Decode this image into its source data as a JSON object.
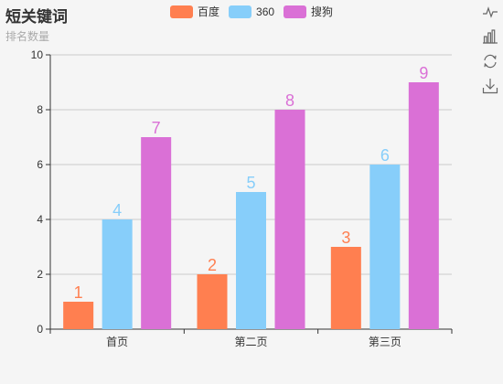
{
  "title": "短关键词",
  "subtitle": "排名数量",
  "toolbox": [
    "line-chart-icon",
    "bar-chart-icon",
    "restore-icon",
    "download-icon"
  ],
  "colors": {
    "baidu": "#ff7f50",
    "s360": "#87cefa",
    "sogou": "#da70d6"
  },
  "chart_data": {
    "type": "bar",
    "categories": [
      "首页",
      "第二页",
      "第三页"
    ],
    "series": [
      {
        "name": "百度",
        "values": [
          1,
          2,
          3
        ],
        "color": "#ff7f50"
      },
      {
        "name": "360",
        "values": [
          4,
          5,
          6
        ],
        "color": "#87cefa"
      },
      {
        "name": "搜狗",
        "values": [
          7,
          8,
          9
        ],
        "color": "#da70d6"
      }
    ],
    "yticks": [
      0,
      2,
      4,
      6,
      8,
      10
    ],
    "ylim": [
      0,
      10
    ],
    "grid": true,
    "legend_position": "top"
  }
}
